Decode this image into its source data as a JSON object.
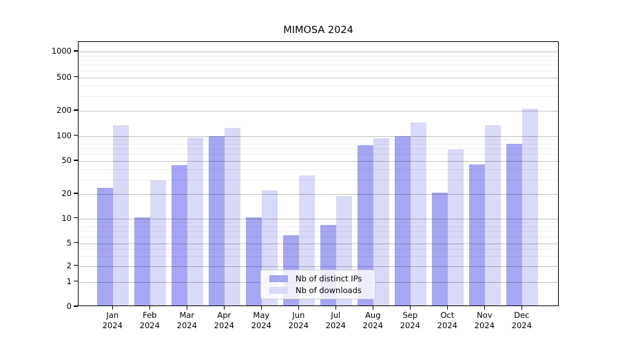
{
  "title": "MIMOSA 2024",
  "chart_data": {
    "type": "bar",
    "title": "MIMOSA 2024",
    "scale": "symlog",
    "categories": [
      "Jan 2024",
      "Feb 2024",
      "Mar 2024",
      "Apr 2024",
      "May 2024",
      "Jun 2024",
      "Jul 2024",
      "Aug 2024",
      "Sep 2024",
      "Oct 2024",
      "Nov 2024",
      "Dec 2024"
    ],
    "series": [
      {
        "name": "Nb of distinct IPs",
        "color": "#a6a6f2",
        "values": [
          23,
          10,
          43,
          96,
          10,
          6,
          8,
          74,
          95,
          20,
          44,
          78
        ]
      },
      {
        "name": "Nb of downloads",
        "color": "#d9d9f8",
        "values": [
          130,
          28,
          92,
          120,
          21,
          32,
          18,
          90,
          140,
          66,
          130,
          205
        ]
      }
    ],
    "yticks": [
      0,
      1,
      2,
      5,
      10,
      20,
      50,
      100,
      200,
      500,
      1000
    ],
    "ylim": [
      0,
      1300
    ],
    "xlabel": "",
    "ylabel": "",
    "grid": true,
    "legend_position": "lower center"
  },
  "legend": {
    "items": [
      {
        "label": "Nb of distinct IPs",
        "color": "#a6a6f2"
      },
      {
        "label": "Nb of downloads",
        "color": "#d9d9f8"
      }
    ]
  }
}
